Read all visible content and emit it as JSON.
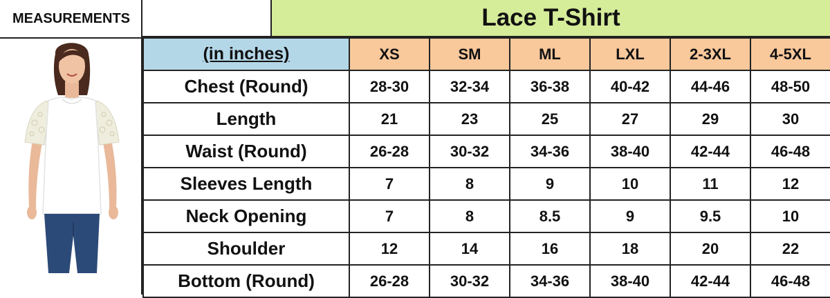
{
  "side_panel": {
    "title": "MEASUREMENTS"
  },
  "header": {
    "product_title": "Lace T-Shirt"
  },
  "table": {
    "unit_label": "(in inches)",
    "sizes": [
      "XS",
      "SM",
      "ML",
      "LXL",
      "2-3XL",
      "4-5XL"
    ],
    "rows": [
      {
        "label": "Chest (Round)",
        "values": [
          "28-30",
          "32-34",
          "36-38",
          "40-42",
          "44-46",
          "48-50"
        ]
      },
      {
        "label": "Length",
        "values": [
          "21",
          "23",
          "25",
          "27",
          "29",
          "30"
        ]
      },
      {
        "label": "Waist (Round)",
        "values": [
          "26-28",
          "30-32",
          "34-36",
          "38-40",
          "42-44",
          "46-48"
        ]
      },
      {
        "label": "Sleeves Length",
        "values": [
          "7",
          "8",
          "9",
          "10",
          "11",
          "12"
        ]
      },
      {
        "label": "Neck Opening",
        "values": [
          "7",
          "8",
          "8.5",
          "9",
          "9.5",
          "10"
        ]
      },
      {
        "label": "Shoulder",
        "values": [
          "12",
          "14",
          "16",
          "18",
          "20",
          "22"
        ]
      },
      {
        "label": "Bottom (Round)",
        "values": [
          "26-28",
          "30-32",
          "34-36",
          "38-40",
          "42-44",
          "46-48"
        ]
      }
    ]
  },
  "colors": {
    "title_bg": "#d5ec99",
    "unit_bg": "#b4d7e8",
    "size_header_bg": "#f9c89b",
    "shirt": "#ffffff",
    "jeans": "#2c4a78",
    "hair": "#4a2a1e"
  }
}
